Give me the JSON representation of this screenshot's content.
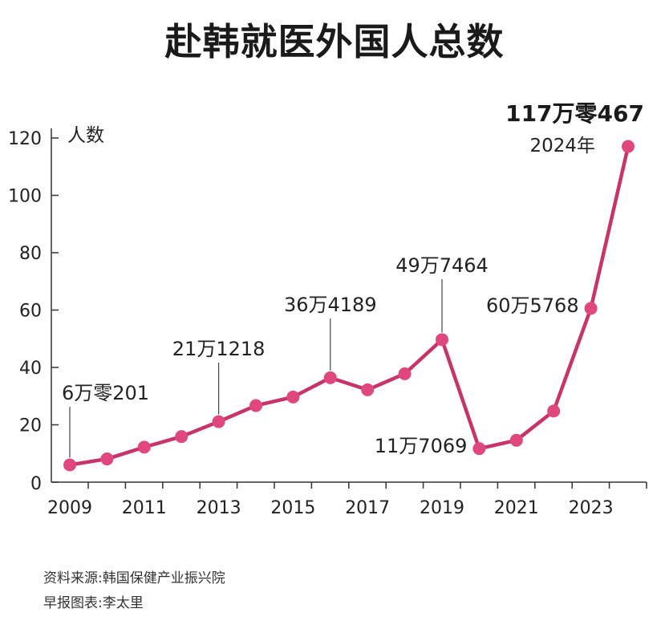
{
  "title": "赴韩就医外国人总数",
  "source": "资料来源:韩国保健产业振兴院",
  "credit": "早报图表:李太里",
  "colors": {
    "line": "#c8336a",
    "marker": "#e0487d",
    "axis": "#333333",
    "text": "#222222"
  },
  "chart_data": {
    "type": "line",
    "title": "赴韩就医外国人总数",
    "ylabel": "人数",
    "ylim": [
      0,
      120
    ],
    "yticks": [
      0,
      20,
      40,
      60,
      80,
      100,
      120
    ],
    "xlim": [
      2009,
      2024
    ],
    "xticks": [
      2009,
      2011,
      2013,
      2015,
      2017,
      2019,
      2021,
      2023
    ],
    "grid": false,
    "series": [
      {
        "x": [
          2009,
          2010,
          2011,
          2012,
          2013,
          2014,
          2015,
          2016,
          2017,
          2018,
          2019,
          2020,
          2021,
          2022,
          2023,
          2024
        ],
        "values": [
          6.02,
          8.1,
          12.2,
          15.9,
          21.1,
          26.7,
          29.7,
          36.4,
          32.2,
          37.8,
          49.7,
          11.7,
          14.6,
          24.8,
          60.6,
          117.0467
        ]
      }
    ],
    "annotations": [
      {
        "x": 2009,
        "y": 6.02,
        "text": "6万零201",
        "leader": true
      },
      {
        "x": 2013,
        "y": 21.1,
        "text": "21万1218",
        "leader": true
      },
      {
        "x": 2016,
        "y": 36.4,
        "text": "36万4189",
        "leader": true
      },
      {
        "x": 2019,
        "y": 49.7,
        "text": "49万7464",
        "leader": true
      },
      {
        "x": 2020,
        "y": 11.7,
        "text": "11万7069",
        "leader": false
      },
      {
        "x": 2023,
        "y": 60.6,
        "text": "60万5768",
        "leader": false
      },
      {
        "x": 2024,
        "y": 117.0467,
        "text": "117万零467",
        "sub": "2024年",
        "leader": false,
        "bold": true
      }
    ]
  }
}
